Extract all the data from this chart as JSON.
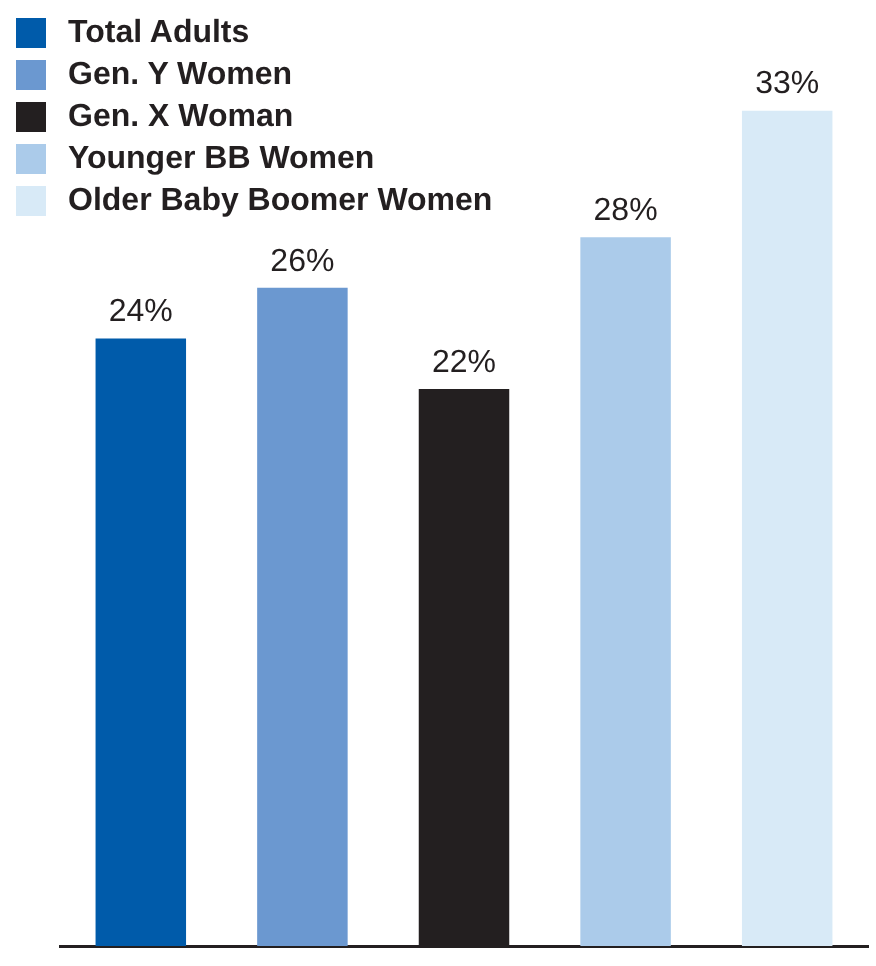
{
  "chart_data": {
    "type": "bar",
    "categories": [
      null,
      null,
      null,
      null,
      null
    ],
    "stacked": true,
    "legend": "top left",
    "grid": false,
    "series": [
      {
        "name": "Total Adults",
        "color": "#005baa",
        "values": [
          24,
          null,
          null,
          null,
          null
        ],
        "value_labels": [
          "24%",
          null,
          null,
          null,
          null
        ]
      },
      {
        "name": "Gen. Y Women",
        "color": "#6b98d0",
        "values": [
          null,
          26,
          null,
          null,
          null
        ],
        "value_labels": [
          null,
          "26%",
          null,
          null,
          null
        ]
      },
      {
        "name": "Gen. X Woman",
        "color": "#231f20",
        "values": [
          null,
          null,
          22,
          null,
          null
        ],
        "value_labels": [
          null,
          null,
          "22%",
          null,
          null
        ]
      },
      {
        "name": "Younger BB Women",
        "color": "#abcbea",
        "values": [
          null,
          null,
          null,
          28,
          null
        ],
        "value_labels": [
          null,
          null,
          null,
          "28%",
          null
        ]
      },
      {
        "name": "Older Baby Boomer Women",
        "color": "#d8eaf7",
        "values": [
          null,
          null,
          null,
          null,
          33
        ],
        "value_labels": [
          null,
          null,
          null,
          null,
          "33%"
        ]
      }
    ]
  }
}
